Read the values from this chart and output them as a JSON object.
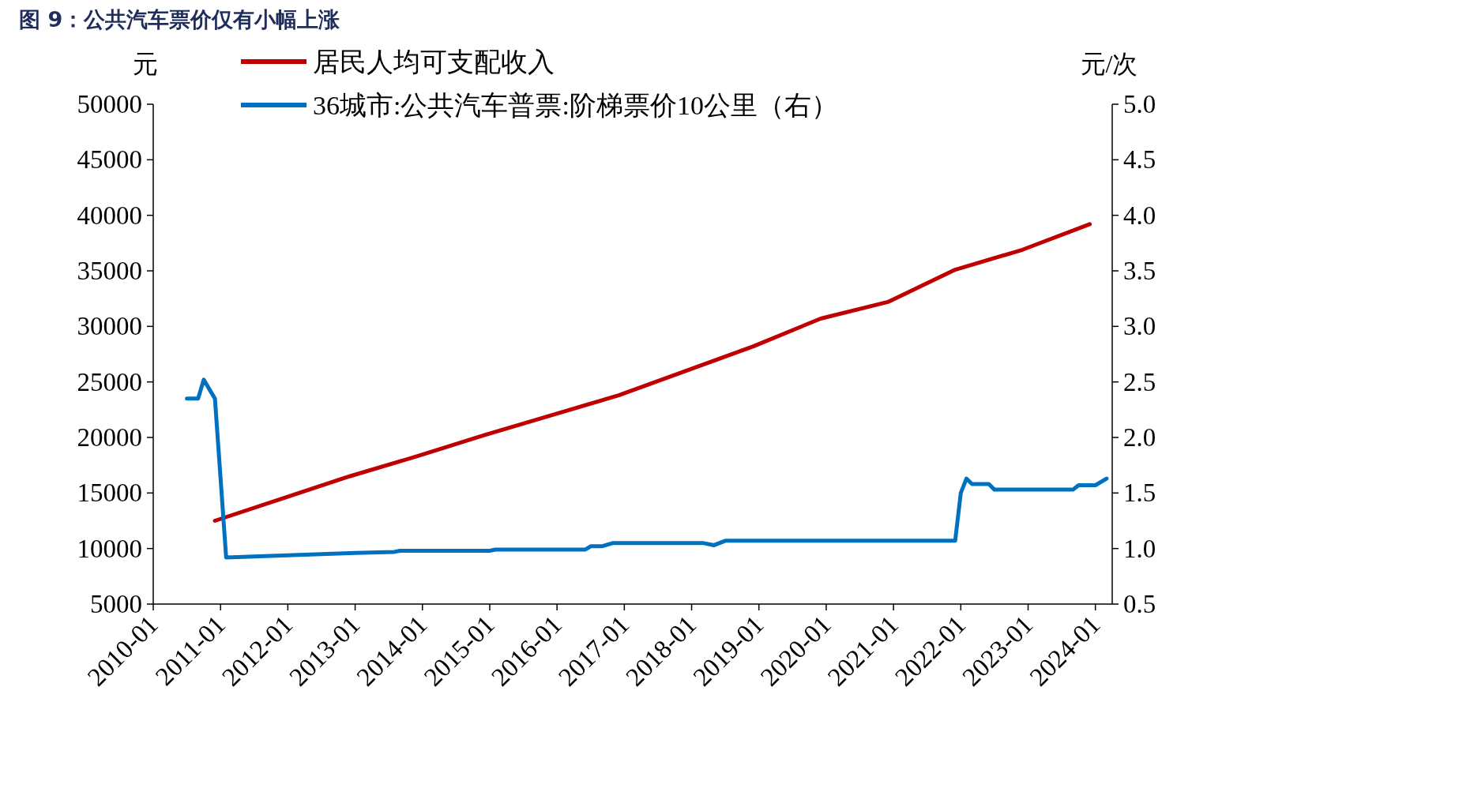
{
  "chart_data": {
    "type": "line",
    "title": "图 9：公共汽车票价仅有小幅上涨",
    "ylabel": "元",
    "y2label": "元/次",
    "xlim": [
      "2010-01",
      "2024-04"
    ],
    "xticks": [
      "2010-01",
      "2011-01",
      "2012-01",
      "2013-01",
      "2014-01",
      "2015-01",
      "2016-01",
      "2017-01",
      "2018-01",
      "2019-01",
      "2020-01",
      "2021-01",
      "2022-01",
      "2023-01",
      "2024-01"
    ],
    "ylim": [
      5000,
      50000
    ],
    "yticks": [
      5000,
      10000,
      15000,
      20000,
      25000,
      30000,
      35000,
      40000,
      45000,
      50000
    ],
    "y2lim": [
      0.5,
      5.0
    ],
    "y2ticks": [
      {
        "value": 0.5,
        "label": "0.5"
      },
      {
        "value": 1.0,
        "label": "1.0"
      },
      {
        "value": 1.5,
        "label": "1.5"
      },
      {
        "value": 2.0,
        "label": "2.0"
      },
      {
        "value": 2.5,
        "label": "2.5"
      },
      {
        "value": 3.0,
        "label": "3.0"
      },
      {
        "value": 3.5,
        "label": "3.5"
      },
      {
        "value": 4.0,
        "label": "4.0"
      },
      {
        "value": 4.5,
        "label": "4.5"
      },
      {
        "value": 5.0,
        "label": "5.0"
      }
    ],
    "legend": "top left",
    "grid": false,
    "series": [
      {
        "name": "居民人均可支配收入",
        "color": "#c00000",
        "x": [
          "2010-12",
          "2011-12",
          "2012-12",
          "2013-12",
          "2014-12",
          "2015-12",
          "2016-12",
          "2017-12",
          "2018-12",
          "2019-12",
          "2020-12",
          "2021-12",
          "2022-12",
          "2023-12"
        ],
        "values": [
          12500,
          14500,
          16500,
          18300,
          20200,
          22000,
          23800,
          26000,
          28200,
          30700,
          32200,
          35100,
          36900,
          39200
        ]
      },
      {
        "name": "36城市:公共汽车普票:阶梯票价10公里（右）",
        "color": "#0070c0",
        "axis": "y2",
        "x": [
          "2010-07",
          "2010-09",
          "2010-10",
          "2010-12",
          "2011-02",
          "2013-01",
          "2013-08",
          "2013-09",
          "2015-01",
          "2015-02",
          "2016-06",
          "2016-07",
          "2016-09",
          "2016-11",
          "2018-03",
          "2018-05",
          "2018-07",
          "2021-12",
          "2022-01",
          "2022-02",
          "2022-03",
          "2022-06",
          "2022-07",
          "2023-09",
          "2023-10",
          "2024-01",
          "2024-03"
        ],
        "values": [
          2.35,
          2.35,
          2.52,
          2.35,
          0.92,
          0.96,
          0.97,
          0.98,
          0.98,
          0.99,
          0.99,
          1.02,
          1.02,
          1.05,
          1.05,
          1.03,
          1.07,
          1.07,
          1.5,
          1.63,
          1.58,
          1.58,
          1.53,
          1.53,
          1.57,
          1.57,
          1.63
        ]
      }
    ]
  }
}
